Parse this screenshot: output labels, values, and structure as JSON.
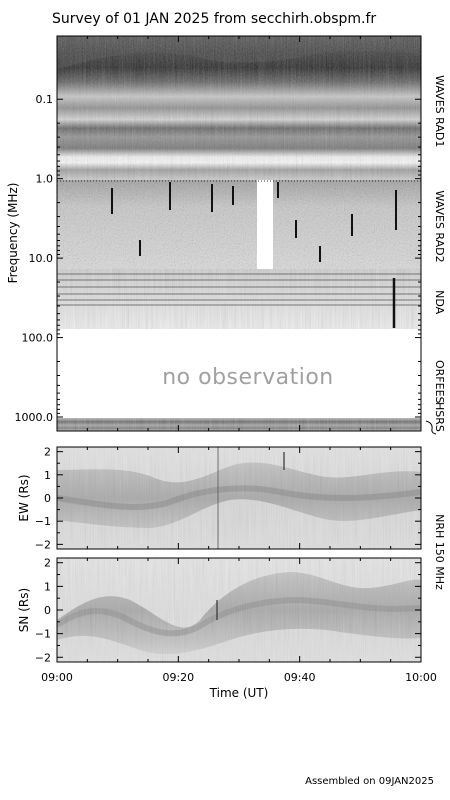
{
  "chart_data": {
    "type": "heatmap",
    "title": "Survey of 01 JAN 2025 from secchirh.obspm.fr",
    "footer": "Assembled on 09JAN2025",
    "xlabel": "Time (UT)",
    "x_ticks": [
      "09:00",
      "09:20",
      "09:40",
      "10:00"
    ],
    "xlim": [
      "09:00",
      "10:00"
    ],
    "colormap": "grayscale",
    "spectrum": {
      "ylabel": "Frequency (MHz)",
      "y_scale": "log",
      "y_direction": "increasing downward",
      "y_ticks": [
        "0.1",
        "1.0",
        "10.0",
        "100.0",
        "1000.0"
      ],
      "instruments": [
        {
          "name": "WAVES RAD1",
          "freq_range_mhz": [
            0.02,
            1.0
          ],
          "observed": true
        },
        {
          "name": "WAVES RAD2",
          "freq_range_mhz": [
            1.0,
            16.0
          ],
          "observed": true,
          "data_gap": [
            "09:33",
            "09:36"
          ]
        },
        {
          "name": "NDA",
          "freq_range_mhz": [
            16.0,
            80.0
          ],
          "observed": true
        },
        {
          "name": "ORFEES",
          "freq_range_mhz": [
            130.0,
            1000.0
          ],
          "observed": false
        },
        {
          "name": "HSRS",
          "freq_range_mhz": [
            1000.0,
            1500.0
          ],
          "observed": true
        }
      ],
      "no_observation_label": "no observation"
    },
    "nrh": {
      "name": "NRH 150 MHz",
      "panels": [
        {
          "ylabel": "EW (Rs)",
          "ylim": [
            -2.2,
            2.2
          ],
          "y_ticks": [
            "2",
            "1",
            "0",
            "−1",
            "−2"
          ]
        },
        {
          "ylabel": "SN (Rs)",
          "ylim": [
            -2.2,
            2.2
          ],
          "y_ticks": [
            "2",
            "1",
            "0",
            "−1",
            "−2"
          ]
        }
      ]
    },
    "grid": false,
    "legend": "none"
  }
}
